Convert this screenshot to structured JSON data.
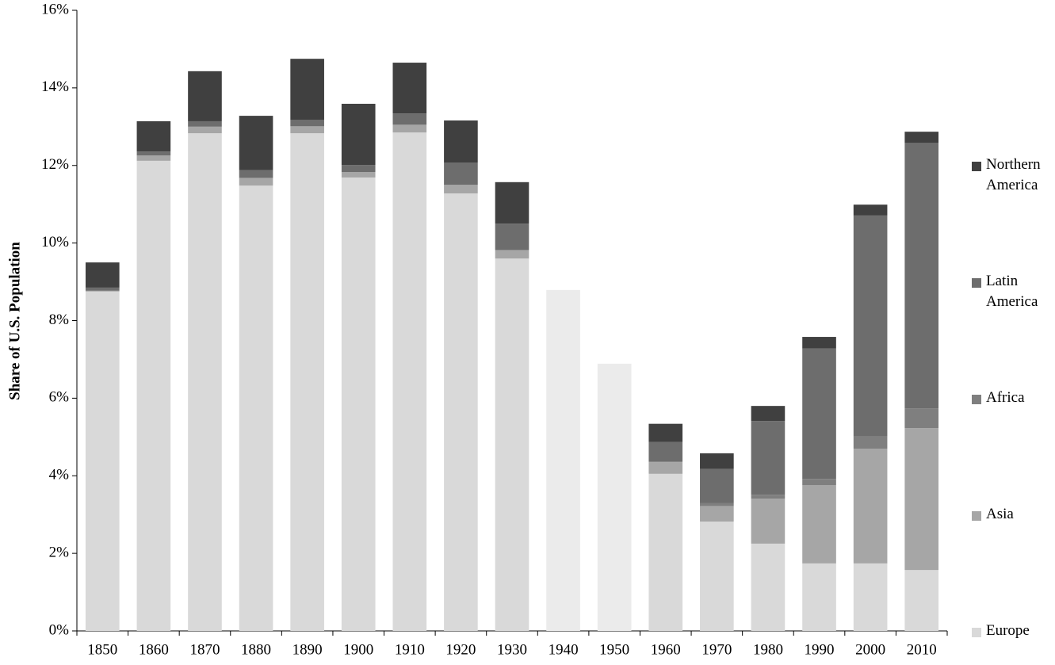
{
  "chart_data": {
    "type": "stacked_bar",
    "y_label": "Share of U.S. Population",
    "categories": [
      "1850",
      "1860",
      "1870",
      "1880",
      "1890",
      "1900",
      "1910",
      "1920",
      "1930",
      "1940",
      "1950",
      "1960",
      "1970",
      "1980",
      "1990",
      "2000",
      "2010"
    ],
    "series": [
      {
        "name": "Europe",
        "color": "#d9d9d9",
        "point_colors": [
          "#d9d9d9",
          "#d9d9d9",
          "#d9d9d9",
          "#d9d9d9",
          "#d9d9d9",
          "#d9d9d9",
          "#d9d9d9",
          "#d9d9d9",
          "#d9d9d9",
          "#ebebeb",
          "#ebebeb",
          "#d9d9d9",
          "#d9d9d9",
          "#d9d9d9",
          "#d9d9d9",
          "#d9d9d9",
          "#d9d9d9"
        ],
        "values": [
          8.75,
          12.12,
          12.83,
          11.48,
          12.83,
          11.69,
          12.85,
          11.28,
          9.6,
          8.79,
          6.89,
          4.05,
          2.82,
          2.25,
          1.74,
          1.74,
          1.57
        ]
      },
      {
        "name": "Asia",
        "color": "#a6a6a6",
        "values": [
          0.02,
          0.14,
          0.17,
          0.2,
          0.18,
          0.14,
          0.2,
          0.22,
          0.22,
          null,
          null,
          0.3,
          0.4,
          1.16,
          2.02,
          2.96,
          3.66
        ]
      },
      {
        "name": "Africa",
        "color": "#7f7f7f",
        "values": [
          0,
          0,
          0,
          0,
          0,
          0,
          0,
          0,
          0,
          null,
          null,
          0.02,
          0.08,
          0.1,
          0.16,
          0.31,
          0.51
        ]
      },
      {
        "name": "Latin America",
        "color": "#6d6d6d",
        "values": [
          0.08,
          0.1,
          0.14,
          0.2,
          0.17,
          0.18,
          0.29,
          0.57,
          0.68,
          null,
          null,
          0.5,
          0.88,
          1.9,
          3.36,
          5.7,
          6.84
        ]
      },
      {
        "name": "Northern America",
        "color": "#404040",
        "values": [
          0.65,
          0.78,
          1.29,
          1.4,
          1.57,
          1.58,
          1.31,
          1.09,
          1.07,
          null,
          null,
          0.47,
          0.4,
          0.39,
          0.3,
          0.28,
          0.29
        ]
      }
    ],
    "ylim": [
      0,
      16
    ],
    "yticks": [
      {
        "value": 0,
        "label": "0%"
      },
      {
        "value": 2,
        "label": "2%"
      },
      {
        "value": 4,
        "label": "4%"
      },
      {
        "value": 6,
        "label": "6%"
      },
      {
        "value": 8,
        "label": "8%"
      },
      {
        "value": 10,
        "label": "10%"
      },
      {
        "value": 12,
        "label": "12%"
      },
      {
        "value": 14,
        "label": "14%"
      },
      {
        "value": 16,
        "label": "16%"
      }
    ],
    "grid": false,
    "legend": "right"
  }
}
